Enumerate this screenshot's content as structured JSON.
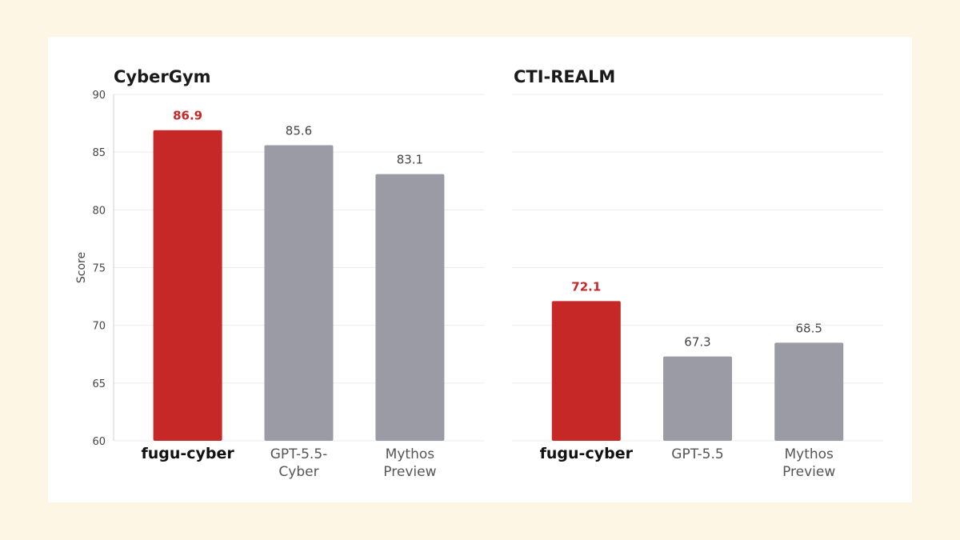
{
  "colors": {
    "background": "#fdf6e4",
    "card": "#ffffff",
    "highlight": "#c62828",
    "other": "#9b9ba5",
    "grid": "#ebebeb",
    "axis": "#d0d0d0",
    "tick_text": "#444444",
    "title_text": "#1a1a1a"
  },
  "highlight_logo_icon": "fugu-fish-icon",
  "chart_data": [
    {
      "type": "bar",
      "title": "CyberGym",
      "ylabel": "Score",
      "ylim": [
        60,
        90
      ],
      "yticks": [
        60,
        65,
        70,
        75,
        80,
        85,
        90
      ],
      "grid": true,
      "categories": [
        {
          "label": "fugu-cyber",
          "lines": [
            "fugu-cyber"
          ],
          "value": 86.9,
          "value_label": "86.9",
          "highlight": true
        },
        {
          "label": "GPT-5.5-Cyber",
          "lines": [
            "GPT-5.5-",
            "Cyber"
          ],
          "value": 85.6,
          "value_label": "85.6",
          "highlight": false
        },
        {
          "label": "Mythos Preview",
          "lines": [
            "Mythos",
            "Preview"
          ],
          "value": 83.1,
          "value_label": "83.1",
          "highlight": false
        }
      ]
    },
    {
      "type": "bar",
      "title": "CTI-REALM",
      "ylabel": "",
      "ylim": [
        60,
        90
      ],
      "yticks": [],
      "grid": true,
      "categories": [
        {
          "label": "fugu-cyber",
          "lines": [
            "fugu-cyber"
          ],
          "value": 72.1,
          "value_label": "72.1",
          "highlight": true
        },
        {
          "label": "GPT-5.5",
          "lines": [
            "GPT-5.5"
          ],
          "value": 67.3,
          "value_label": "67.3",
          "highlight": false
        },
        {
          "label": "Mythos Preview",
          "lines": [
            "Mythos",
            "Preview"
          ],
          "value": 68.5,
          "value_label": "68.5",
          "highlight": false
        }
      ]
    }
  ]
}
